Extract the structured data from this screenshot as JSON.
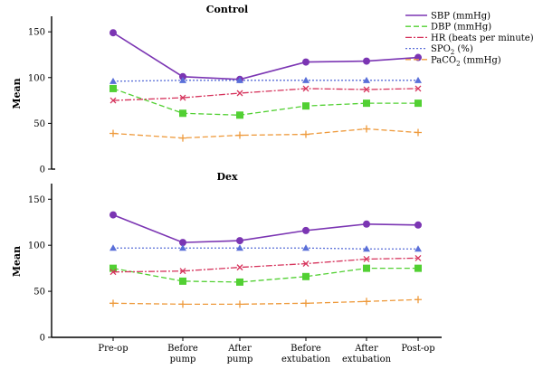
{
  "chart_data": [
    {
      "type": "line",
      "title": "Control",
      "ylabel": "Mean",
      "xlabel": "",
      "ylim": [
        0,
        165
      ],
      "yticks": [
        0,
        50,
        100,
        150
      ],
      "categories": [
        [
          "Pre-op"
        ],
        [
          "Before",
          "pump"
        ],
        [
          "After",
          "pump"
        ],
        [
          "Before",
          "extubation"
        ],
        [
          "After",
          "extubation"
        ],
        [
          "Post-op"
        ]
      ],
      "series": [
        {
          "name": "SBP (mmHg)",
          "color": "#7b35b3",
          "dash": "solid",
          "marker": "circle",
          "values": [
            149,
            101,
            98,
            117,
            118,
            122
          ]
        },
        {
          "name": "DBP (mmHg)",
          "color": "#52d033",
          "dash": "dash",
          "marker": "square",
          "values": [
            88,
            61,
            59,
            69,
            72,
            72
          ]
        },
        {
          "name": "HR (beats per minute)",
          "color": "#d6335c",
          "dash": "dashdot",
          "marker": "x",
          "values": [
            75,
            78,
            83,
            88,
            87,
            88
          ]
        },
        {
          "name": "SPO2 (%)",
          "color": "#5a6fd8",
          "dash": "dot",
          "marker": "triangle",
          "values": [
            96,
            97,
            97,
            97,
            97,
            97
          ]
        },
        {
          "name": "PaCO2 (mmHg)",
          "color": "#ee9a3c",
          "dash": "dash",
          "marker": "plus",
          "values": [
            39,
            34,
            37,
            38,
            44,
            40
          ]
        }
      ]
    },
    {
      "type": "line",
      "title": "Dex",
      "ylabel": "Mean",
      "xlabel": "",
      "ylim": [
        0,
        165
      ],
      "yticks": [
        0,
        50,
        100,
        150
      ],
      "categories": [
        [
          "Pre-op"
        ],
        [
          "Before",
          "pump"
        ],
        [
          "After",
          "pump"
        ],
        [
          "Before",
          "extubation"
        ],
        [
          "After",
          "extubation"
        ],
        [
          "Post-op"
        ]
      ],
      "series": [
        {
          "name": "SBP (mmHg)",
          "color": "#7b35b3",
          "dash": "solid",
          "marker": "circle",
          "values": [
            133,
            103,
            105,
            116,
            123,
            122
          ]
        },
        {
          "name": "DBP (mmHg)",
          "color": "#52d033",
          "dash": "dash",
          "marker": "square",
          "values": [
            75,
            61,
            60,
            66,
            75,
            75
          ]
        },
        {
          "name": "HR (beats per minute)",
          "color": "#d6335c",
          "dash": "dashdot",
          "marker": "x",
          "values": [
            71,
            72,
            76,
            80,
            85,
            86
          ]
        },
        {
          "name": "SPO2 (%)",
          "color": "#5a6fd8",
          "dash": "dot",
          "marker": "triangle",
          "values": [
            97,
            97,
            97,
            97,
            96,
            96
          ]
        },
        {
          "name": "PaCO2 (mmHg)",
          "color": "#ee9a3c",
          "dash": "dash",
          "marker": "plus",
          "values": [
            37,
            36,
            36,
            37,
            39,
            41
          ]
        }
      ]
    }
  ],
  "legend": {
    "placement": "top-right",
    "items": [
      {
        "label": "SBP (mmHg)",
        "color": "#7b35b3",
        "dash": "solid"
      },
      {
        "label": "DBP (mmHg)",
        "color": "#52d033",
        "dash": "dash"
      },
      {
        "label": "HR (beats per minute)",
        "color": "#d6335c",
        "dash": "dashdot"
      },
      {
        "label": "SPO",
        "sub": "2",
        "suffix": " (%)",
        "color": "#5a6fd8",
        "dash": "dot"
      },
      {
        "label": "PaCO",
        "sub": "2",
        "suffix": " (mmHg)",
        "color": "#ee9a3c",
        "dash": "dash"
      }
    ]
  }
}
